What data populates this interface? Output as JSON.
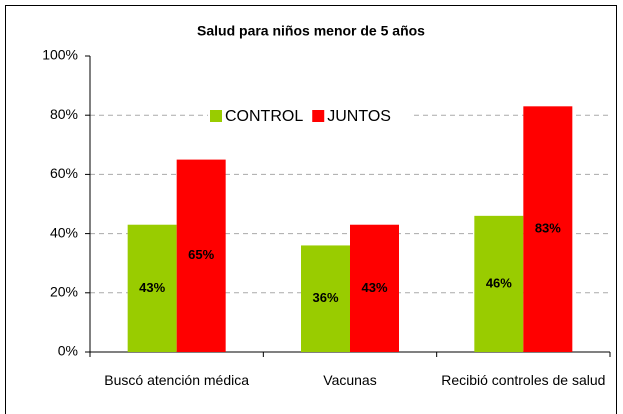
{
  "chart_data": {
    "type": "bar",
    "title": "Salud para niños menor de 5 años",
    "categories": [
      "Buscó atención médica",
      "Vacunas",
      "Recibió controles de salud"
    ],
    "series": [
      {
        "name": "CONTROL",
        "color": "#99cc00",
        "values": [
          43,
          36,
          46
        ],
        "value_labels": [
          "43%",
          "36%",
          "46%"
        ]
      },
      {
        "name": "JUNTOS",
        "color": "#ff0000",
        "values": [
          65,
          43,
          83
        ],
        "value_labels": [
          "65%",
          "43%",
          "83%"
        ]
      }
    ],
    "ylim": [
      0,
      100
    ],
    "yticks": [
      {
        "value": 0,
        "label": "0%"
      },
      {
        "value": 20,
        "label": "20%"
      },
      {
        "value": 40,
        "label": "40%"
      },
      {
        "value": 60,
        "label": "60%"
      },
      {
        "value": 80,
        "label": "80%"
      },
      {
        "value": 100,
        "label": "100%"
      }
    ],
    "grid": true,
    "legend": "top"
  }
}
